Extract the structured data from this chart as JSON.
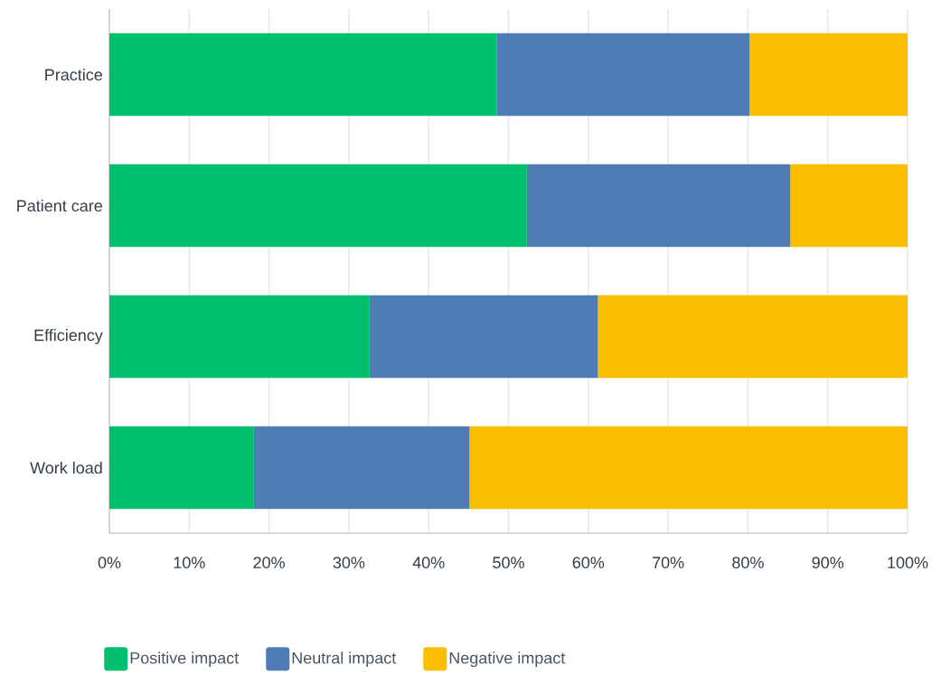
{
  "chart_data": {
    "type": "bar",
    "orientation": "horizontal",
    "stacked": true,
    "categories": [
      "Practice",
      "Patient care",
      "Efficiency",
      "Work load"
    ],
    "series": [
      {
        "name": "Positive impact",
        "color": "#00bf6f",
        "values": [
          48.5,
          52.3,
          32.6,
          18.1
        ]
      },
      {
        "name": "Neutral impact",
        "color": "#507cb6",
        "values": [
          31.7,
          33.0,
          28.6,
          27.0
        ]
      },
      {
        "name": "Negative impact",
        "color": "#f9be00",
        "values": [
          19.8,
          14.7,
          38.8,
          54.9
        ]
      }
    ],
    "xlim": [
      0,
      100
    ],
    "xticks": [
      {
        "value": 0,
        "label": "0%"
      },
      {
        "value": 10,
        "label": "10%"
      },
      {
        "value": 20,
        "label": "20%"
      },
      {
        "value": 30,
        "label": "30%"
      },
      {
        "value": 40,
        "label": "40%"
      },
      {
        "value": 50,
        "label": "50%"
      },
      {
        "value": 60,
        "label": "60%"
      },
      {
        "value": 70,
        "label": "70%"
      },
      {
        "value": 80,
        "label": "80%"
      },
      {
        "value": 90,
        "label": "90%"
      },
      {
        "value": 100,
        "label": "100%"
      }
    ],
    "grid": "x",
    "legend": "bottom"
  }
}
